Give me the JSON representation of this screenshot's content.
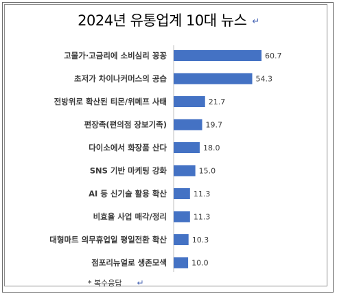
{
  "chart_data": {
    "type": "bar",
    "orientation": "horizontal",
    "title": "2024년 유통업계 10대 뉴스",
    "categories": [
      "고물가·고금리에 소비심리 꽁꽁",
      "초저가 차이나커머스의 공습",
      "전방위로 확산된 티몬/위메프 사태",
      "편장족(편의점 장보기족)",
      "다이소에서 화장품 산다",
      "SNS 기반 마케팅 강화",
      "AI 등 신기술 활용 확산",
      "비효율 사업 매각/정리",
      "대형마트 의무휴업일 평일전환 확산",
      "점포리뉴얼로 생존모색"
    ],
    "values": [
      60.7,
      54.3,
      21.7,
      19.7,
      18.0,
      15.0,
      11.3,
      11.3,
      10.3,
      10.0
    ],
    "value_labels": [
      "60.7",
      "54.3",
      "21.7",
      "19.7",
      "18.0",
      "15.0",
      "11.3",
      "11.3",
      "10.3",
      "10.0"
    ],
    "xlim": [
      0,
      70
    ],
    "grid": false,
    "bar_color": "#4472c4",
    "footnote": "* 복수응답"
  }
}
